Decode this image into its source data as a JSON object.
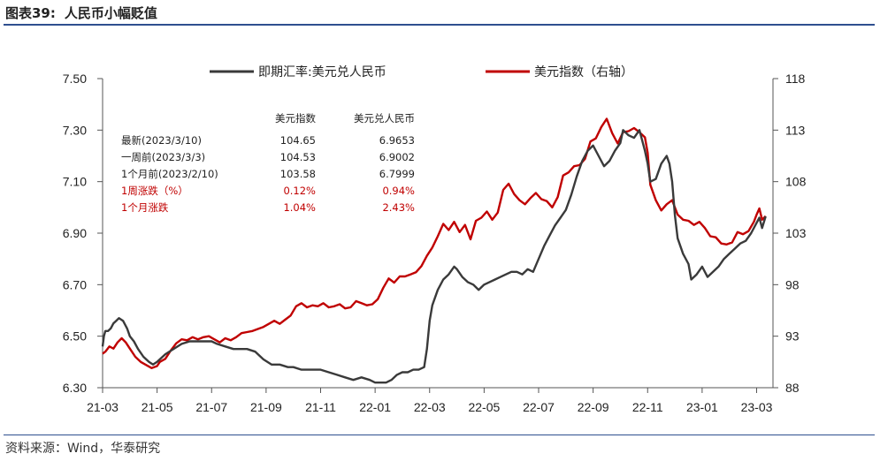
{
  "header": {
    "figure_label": "图表39:",
    "title": "人民币小幅贬值"
  },
  "source": "资料来源：Wind，华泰研究",
  "legend": {
    "series1": "即期汇率:美元兑人民币",
    "series2": "美元指数（右轴）"
  },
  "colors": {
    "series1": "#3a3a3a",
    "series2": "#c00000",
    "rule": "#2e4f8f"
  },
  "table": {
    "headers": [
      "美元指数",
      "美元兑人民币"
    ],
    "rows": [
      {
        "label": "最新(2023/3/10)",
        "v1": "104.65",
        "v2": "6.9653",
        "highlight": false
      },
      {
        "label": "一周前(2023/3/3)",
        "v1": "104.53",
        "v2": "6.9002",
        "highlight": false
      },
      {
        "label": "1个月前(2023/2/10)",
        "v1": "103.58",
        "v2": "6.7999",
        "highlight": false
      },
      {
        "label": "1周涨跌（%）",
        "v1": "0.12%",
        "v2": "0.94%",
        "highlight": true
      },
      {
        "label": "1个月涨跌",
        "v1": "1.04%",
        "v2": "2.43%",
        "highlight": true
      }
    ]
  },
  "chart_data": {
    "type": "line",
    "title": "人民币小幅贬值",
    "x_ticks": [
      "21-03",
      "21-05",
      "21-07",
      "21-09",
      "21-11",
      "22-01",
      "22-03",
      "22-05",
      "22-07",
      "22-09",
      "22-11",
      "23-01",
      "23-03"
    ],
    "x_range": [
      "2021-03",
      "2023-03"
    ],
    "y_left": {
      "ticks": [
        "7.50",
        "7.30",
        "7.10",
        "6.90",
        "6.70",
        "6.50",
        "6.30"
      ],
      "range": [
        6.3,
        7.5
      ]
    },
    "y_right": {
      "ticks": [
        "118",
        "113",
        "108",
        "103",
        "98",
        "93",
        "88"
      ],
      "range": [
        88,
        118
      ]
    },
    "series": [
      {
        "name": "即期汇率:美元兑人民币",
        "axis": "left",
        "points": [
          [
            0.0,
            6.46
          ],
          [
            0.05,
            6.5
          ],
          [
            0.1,
            6.52
          ],
          [
            0.2,
            6.52
          ],
          [
            0.3,
            6.53
          ],
          [
            0.4,
            6.55
          ],
          [
            0.5,
            6.56
          ],
          [
            0.6,
            6.57
          ],
          [
            0.75,
            6.56
          ],
          [
            0.9,
            6.53
          ],
          [
            1.0,
            6.5
          ],
          [
            1.15,
            6.48
          ],
          [
            1.3,
            6.45
          ],
          [
            1.5,
            6.42
          ],
          [
            1.7,
            6.4
          ],
          [
            1.85,
            6.39
          ],
          [
            2.0,
            6.4
          ],
          [
            2.3,
            6.43
          ],
          [
            2.6,
            6.45
          ],
          [
            2.9,
            6.47
          ],
          [
            3.2,
            6.48
          ],
          [
            3.5,
            6.48
          ],
          [
            3.8,
            6.48
          ],
          [
            4.0,
            6.48
          ],
          [
            4.2,
            6.47
          ],
          [
            4.5,
            6.46
          ],
          [
            4.8,
            6.45
          ],
          [
            5.0,
            6.45
          ],
          [
            5.3,
            6.45
          ],
          [
            5.6,
            6.44
          ],
          [
            5.9,
            6.41
          ],
          [
            6.2,
            6.39
          ],
          [
            6.5,
            6.39
          ],
          [
            6.8,
            6.38
          ],
          [
            7.0,
            6.38
          ],
          [
            7.3,
            6.37
          ],
          [
            7.6,
            6.37
          ],
          [
            7.8,
            6.37
          ],
          [
            8.0,
            6.37
          ],
          [
            8.3,
            6.36
          ],
          [
            8.6,
            6.35
          ],
          [
            8.9,
            6.34
          ],
          [
            9.2,
            6.33
          ],
          [
            9.5,
            6.34
          ],
          [
            9.8,
            6.33
          ],
          [
            10.0,
            6.32
          ],
          [
            10.2,
            6.32
          ],
          [
            10.4,
            6.32
          ],
          [
            10.6,
            6.33
          ],
          [
            10.8,
            6.35
          ],
          [
            11.0,
            6.36
          ],
          [
            11.2,
            6.36
          ],
          [
            11.4,
            6.37
          ],
          [
            11.6,
            6.37
          ],
          [
            11.8,
            6.38
          ],
          [
            11.9,
            6.45
          ],
          [
            12.0,
            6.56
          ],
          [
            12.1,
            6.62
          ],
          [
            12.3,
            6.68
          ],
          [
            12.5,
            6.72
          ],
          [
            12.7,
            6.74
          ],
          [
            12.9,
            6.77
          ],
          [
            13.0,
            6.76
          ],
          [
            13.2,
            6.73
          ],
          [
            13.4,
            6.71
          ],
          [
            13.6,
            6.7
          ],
          [
            13.8,
            6.68
          ],
          [
            14.0,
            6.7
          ],
          [
            14.2,
            6.71
          ],
          [
            14.4,
            6.72
          ],
          [
            14.6,
            6.73
          ],
          [
            14.8,
            6.74
          ],
          [
            15.0,
            6.75
          ],
          [
            15.2,
            6.75
          ],
          [
            15.4,
            6.74
          ],
          [
            15.6,
            6.76
          ],
          [
            15.8,
            6.75
          ],
          [
            16.0,
            6.8
          ],
          [
            16.2,
            6.85
          ],
          [
            16.4,
            6.89
          ],
          [
            16.6,
            6.93
          ],
          [
            16.8,
            6.96
          ],
          [
            17.0,
            6.99
          ],
          [
            17.2,
            7.05
          ],
          [
            17.4,
            7.12
          ],
          [
            17.6,
            7.18
          ],
          [
            17.8,
            7.22
          ],
          [
            18.0,
            7.24
          ],
          [
            18.2,
            7.2
          ],
          [
            18.4,
            7.16
          ],
          [
            18.6,
            7.18
          ],
          [
            18.8,
            7.22
          ],
          [
            19.0,
            7.25
          ],
          [
            19.1,
            7.3
          ],
          [
            19.3,
            7.28
          ],
          [
            19.5,
            7.27
          ],
          [
            19.7,
            7.3
          ],
          [
            19.8,
            7.26
          ],
          [
            19.9,
            7.22
          ],
          [
            20.0,
            7.17
          ],
          [
            20.1,
            7.1
          ],
          [
            20.3,
            7.11
          ],
          [
            20.5,
            7.17
          ],
          [
            20.7,
            7.2
          ],
          [
            20.8,
            7.17
          ],
          [
            20.9,
            7.1
          ],
          [
            21.0,
            6.97
          ],
          [
            21.1,
            6.88
          ],
          [
            21.3,
            6.82
          ],
          [
            21.5,
            6.78
          ],
          [
            21.6,
            6.72
          ],
          [
            21.8,
            6.74
          ],
          [
            22.0,
            6.77
          ],
          [
            22.2,
            6.73
          ],
          [
            22.4,
            6.75
          ],
          [
            22.6,
            6.77
          ],
          [
            22.8,
            6.8
          ],
          [
            23.0,
            6.82
          ],
          [
            23.2,
            6.84
          ],
          [
            23.4,
            6.86
          ],
          [
            23.6,
            6.87
          ],
          [
            23.8,
            6.9
          ],
          [
            24.0,
            6.94
          ],
          [
            24.1,
            6.96
          ],
          [
            24.2,
            6.92
          ],
          [
            24.33,
            6.9653
          ]
        ]
      },
      {
        "name": "美元指数（右轴）",
        "axis": "right",
        "points": [
          [
            0.0,
            91.3
          ],
          [
            0.1,
            91.5
          ],
          [
            0.25,
            92.0
          ],
          [
            0.4,
            91.8
          ],
          [
            0.55,
            92.4
          ],
          [
            0.7,
            92.8
          ],
          [
            0.85,
            92.4
          ],
          [
            1.0,
            91.8
          ],
          [
            1.2,
            91.0
          ],
          [
            1.4,
            90.5
          ],
          [
            1.6,
            90.2
          ],
          [
            1.8,
            89.9
          ],
          [
            2.0,
            90.1
          ],
          [
            2.1,
            90.5
          ],
          [
            2.3,
            90.8
          ],
          [
            2.5,
            91.6
          ],
          [
            2.7,
            92.3
          ],
          [
            2.9,
            92.7
          ],
          [
            3.1,
            92.6
          ],
          [
            3.3,
            92.9
          ],
          [
            3.5,
            92.7
          ],
          [
            3.7,
            92.9
          ],
          [
            3.9,
            93.0
          ],
          [
            4.1,
            92.7
          ],
          [
            4.3,
            92.4
          ],
          [
            4.5,
            92.8
          ],
          [
            4.7,
            92.6
          ],
          [
            4.9,
            92.9
          ],
          [
            5.1,
            93.3
          ],
          [
            5.3,
            93.4
          ],
          [
            5.5,
            93.5
          ],
          [
            5.7,
            93.7
          ],
          [
            5.9,
            93.9
          ],
          [
            6.1,
            94.2
          ],
          [
            6.3,
            94.5
          ],
          [
            6.5,
            94.2
          ],
          [
            6.7,
            94.6
          ],
          [
            6.9,
            95.0
          ],
          [
            7.1,
            95.9
          ],
          [
            7.3,
            96.2
          ],
          [
            7.5,
            95.8
          ],
          [
            7.7,
            96.0
          ],
          [
            7.9,
            95.9
          ],
          [
            8.1,
            96.2
          ],
          [
            8.3,
            95.8
          ],
          [
            8.5,
            95.9
          ],
          [
            8.7,
            96.1
          ],
          [
            8.9,
            95.7
          ],
          [
            9.1,
            95.8
          ],
          [
            9.3,
            96.4
          ],
          [
            9.5,
            96.2
          ],
          [
            9.7,
            96.0
          ],
          [
            9.9,
            96.1
          ],
          [
            10.1,
            96.6
          ],
          [
            10.3,
            97.7
          ],
          [
            10.5,
            98.6
          ],
          [
            10.7,
            98.2
          ],
          [
            10.9,
            98.8
          ],
          [
            11.1,
            98.8
          ],
          [
            11.3,
            99.0
          ],
          [
            11.5,
            99.2
          ],
          [
            11.7,
            99.8
          ],
          [
            11.9,
            100.8
          ],
          [
            12.1,
            101.6
          ],
          [
            12.3,
            102.7
          ],
          [
            12.5,
            103.9
          ],
          [
            12.7,
            103.3
          ],
          [
            12.9,
            104.1
          ],
          [
            13.1,
            103.1
          ],
          [
            13.3,
            103.8
          ],
          [
            13.5,
            102.4
          ],
          [
            13.7,
            104.2
          ],
          [
            13.9,
            104.5
          ],
          [
            14.1,
            105.1
          ],
          [
            14.3,
            104.3
          ],
          [
            14.5,
            105.0
          ],
          [
            14.7,
            107.2
          ],
          [
            14.9,
            107.8
          ],
          [
            15.1,
            106.8
          ],
          [
            15.3,
            106.2
          ],
          [
            15.5,
            105.8
          ],
          [
            15.7,
            106.4
          ],
          [
            15.9,
            106.9
          ],
          [
            16.1,
            106.3
          ],
          [
            16.3,
            106.1
          ],
          [
            16.5,
            105.5
          ],
          [
            16.7,
            106.5
          ],
          [
            16.9,
            108.6
          ],
          [
            17.1,
            108.9
          ],
          [
            17.3,
            109.5
          ],
          [
            17.5,
            109.6
          ],
          [
            17.7,
            110.2
          ],
          [
            17.9,
            111.9
          ],
          [
            18.1,
            112.2
          ],
          [
            18.3,
            113.3
          ],
          [
            18.5,
            114.1
          ],
          [
            18.7,
            112.7
          ],
          [
            18.9,
            111.7
          ],
          [
            19.1,
            112.8
          ],
          [
            19.3,
            112.9
          ],
          [
            19.5,
            113.2
          ],
          [
            19.7,
            112.8
          ],
          [
            19.9,
            112.3
          ],
          [
            20.0,
            110.8
          ],
          [
            20.1,
            107.7
          ],
          [
            20.3,
            106.2
          ],
          [
            20.5,
            105.2
          ],
          [
            20.7,
            105.8
          ],
          [
            20.9,
            106.2
          ],
          [
            21.1,
            104.8
          ],
          [
            21.3,
            104.3
          ],
          [
            21.5,
            104.2
          ],
          [
            21.7,
            103.8
          ],
          [
            21.9,
            104.1
          ],
          [
            22.1,
            103.5
          ],
          [
            22.3,
            102.7
          ],
          [
            22.5,
            102.6
          ],
          [
            22.7,
            102.0
          ],
          [
            22.9,
            101.9
          ],
          [
            23.1,
            102.1
          ],
          [
            23.3,
            103.1
          ],
          [
            23.5,
            102.9
          ],
          [
            23.7,
            103.2
          ],
          [
            23.9,
            104.1
          ],
          [
            24.0,
            104.8
          ],
          [
            24.1,
            105.4
          ],
          [
            24.2,
            104.3
          ],
          [
            24.33,
            104.65
          ]
        ]
      }
    ]
  }
}
